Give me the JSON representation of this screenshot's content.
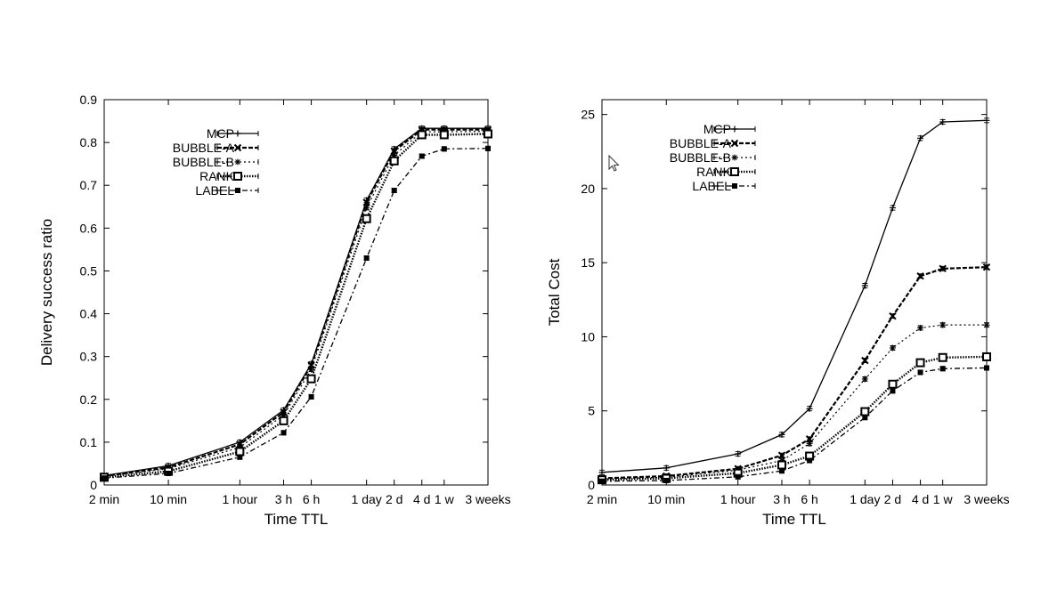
{
  "chart_data": [
    {
      "type": "line",
      "title": "",
      "xlabel": "Time TTL",
      "ylabel": "Delivery success ratio",
      "x_scale": "log",
      "x_ticks": [
        "2 min",
        "10 min",
        "1 hour",
        "3 h",
        "6 h",
        "1 day",
        "2 d",
        "4 d",
        "1 w",
        "3 weeks"
      ],
      "y_ticks": [
        "0",
        "0.1",
        "0.2",
        "0.3",
        "0.4",
        "0.5",
        "0.6",
        "0.7",
        "0.8",
        "0.9"
      ],
      "ylim": [
        0,
        0.9
      ],
      "legend_position": "top-left",
      "grid": false,
      "x": [
        "2 min",
        "10 min",
        "1 hour",
        "3 h",
        "6 h",
        "1 day",
        "2 d",
        "4 d",
        "1 w",
        "3 weeks"
      ],
      "series": [
        {
          "name": "MCP",
          "marker": "plus",
          "dash": "solid",
          "values": [
            0.022,
            0.045,
            0.1,
            0.175,
            0.283,
            0.665,
            0.785,
            0.833,
            0.833,
            0.833
          ]
        },
        {
          "name": "BUBBLE-A",
          "marker": "x",
          "dash": "dashed",
          "values": [
            0.021,
            0.041,
            0.095,
            0.17,
            0.28,
            0.66,
            0.78,
            0.83,
            0.83,
            0.83
          ]
        },
        {
          "name": "BUBBLE-B",
          "marker": "star",
          "dash": "dotted",
          "values": [
            0.02,
            0.038,
            0.088,
            0.163,
            0.27,
            0.648,
            0.77,
            0.825,
            0.825,
            0.826
          ]
        },
        {
          "name": "RANK",
          "marker": "square-open",
          "dash": "dense-dotted",
          "values": [
            0.018,
            0.032,
            0.078,
            0.15,
            0.248,
            0.622,
            0.757,
            0.818,
            0.818,
            0.82
          ]
        },
        {
          "name": "LABEL",
          "marker": "square-filled",
          "dash": "dash-dot",
          "values": [
            0.016,
            0.027,
            0.065,
            0.122,
            0.206,
            0.53,
            0.688,
            0.768,
            0.785,
            0.786
          ]
        }
      ]
    },
    {
      "type": "line",
      "title": "",
      "xlabel": "Time TTL",
      "ylabel": "Total Cost",
      "x_scale": "log",
      "x_ticks": [
        "2 min",
        "10 min",
        "1 hour",
        "3 h",
        "6 h",
        "1 day",
        "2 d",
        "4 d",
        "1 w",
        "3 weeks"
      ],
      "y_ticks": [
        "0",
        "5",
        "10",
        "15",
        "20",
        "25"
      ],
      "ylim": [
        0,
        26
      ],
      "legend_position": "top-left",
      "grid": false,
      "x": [
        "2 min",
        "10 min",
        "1 hour",
        "3 h",
        "6 h",
        "1 day",
        "2 d",
        "4 d",
        "1 w",
        "3 weeks"
      ],
      "series": [
        {
          "name": "MCP",
          "marker": "plus",
          "dash": "solid",
          "values": [
            0.85,
            1.15,
            2.1,
            3.4,
            5.15,
            13.45,
            18.7,
            23.4,
            24.5,
            24.6
          ]
        },
        {
          "name": "BUBBLE-A",
          "marker": "x",
          "dash": "dashed",
          "values": [
            0.45,
            0.6,
            1.1,
            2.0,
            3.1,
            8.4,
            11.4,
            14.1,
            14.6,
            14.7
          ]
        },
        {
          "name": "BUBBLE-B",
          "marker": "star",
          "dash": "dotted",
          "values": [
            0.4,
            0.52,
            1.0,
            1.65,
            2.8,
            7.15,
            9.25,
            10.6,
            10.8,
            10.8
          ]
        },
        {
          "name": "RANK",
          "marker": "square-open",
          "dash": "dense-dotted",
          "values": [
            0.35,
            0.45,
            0.8,
            1.35,
            1.95,
            4.95,
            6.8,
            8.25,
            8.6,
            8.65
          ]
        },
        {
          "name": "LABEL",
          "marker": "square-filled",
          "dash": "dash-dot",
          "values": [
            0.25,
            0.3,
            0.55,
            0.95,
            1.65,
            4.55,
            6.35,
            7.6,
            7.85,
            7.9
          ]
        }
      ]
    }
  ]
}
